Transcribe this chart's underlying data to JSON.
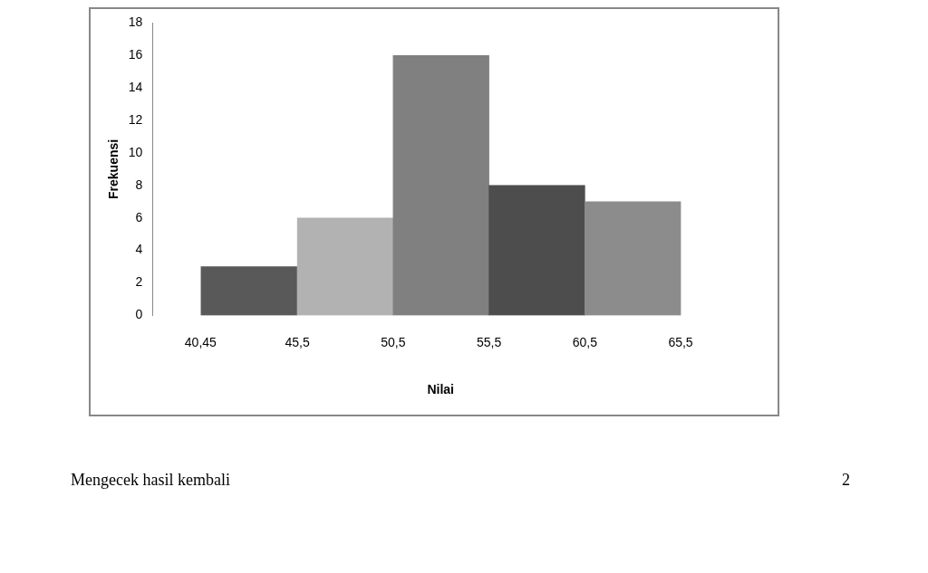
{
  "chart_data": {
    "type": "histogram",
    "xlabel": "Nilai",
    "ylabel": "Frekuensi",
    "bins": [
      40.45,
      45.5,
      50.5,
      55.5,
      60.5,
      65.5
    ],
    "values": [
      3,
      6,
      16,
      8,
      7
    ],
    "colors": [
      "#595959",
      "#b2b2b2",
      "#808080",
      "#4d4d4d",
      "#8c8c8c"
    ],
    "ylim": [
      0,
      18
    ],
    "yticks": [
      0,
      2,
      4,
      6,
      8,
      10,
      12,
      14,
      16,
      18
    ],
    "xlim": [
      40.45,
      65.5
    ],
    "xticks": [
      {
        "value": 40.45,
        "label": "40,45"
      },
      {
        "value": 45.5,
        "label": "45,5"
      },
      {
        "value": 50.5,
        "label": "50,5"
      },
      {
        "value": 55.5,
        "label": "55,5"
      },
      {
        "value": 60.5,
        "label": "60,5"
      },
      {
        "value": 65.5,
        "label": "65,5"
      }
    ],
    "grid": false,
    "legend": false,
    "annotations": [
      "Mengecek hasil kembali",
      "2"
    ]
  }
}
